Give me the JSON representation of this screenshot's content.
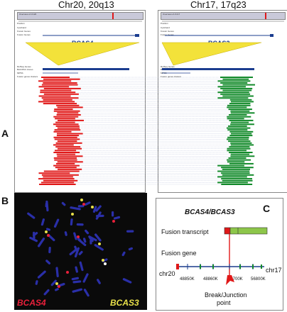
{
  "panel_a": {
    "label": "A",
    "left_title": "Chr20, 20q13",
    "right_title": "Chr17, 17q23",
    "left_gene": "BCAS4",
    "right_gene": "BCAS3",
    "left_ideogram_label": "Overview of chr20",
    "right_ideogram_label": "Overview of chr17",
    "track_titles": [
      "Position",
      "Cytoband",
      "Known Genes",
      "Fusion Genes",
      "RefSeq Genes",
      "BAC/PAC clones",
      "MPSS",
      "Fusion genes clusters"
    ],
    "colors": {
      "left_reads": "#e01818",
      "right_reads": "#128a2a",
      "zoom": "#f3e23a",
      "gene_bar": "#1b3d8f"
    }
  },
  "panel_b": {
    "label": "B",
    "probe_left": "BCAS4",
    "probe_right": "BCAS3",
    "colors": {
      "probe_left": "#e8203a",
      "probe_right": "#e8e04a",
      "background": "#0a0a0a",
      "chromosome": "#2a2fa8"
    }
  },
  "panel_c": {
    "label": "C",
    "title": "BCAS4/BCAS3",
    "fusion_transcript_label": "Fusion transcript",
    "fusion_gene_label": "Fusion gene",
    "chr_left": "chr20",
    "chr_right": "chr17",
    "ticks": [
      "48850K",
      "48860K",
      "56700K",
      "56800K"
    ],
    "break_label_1": "Break/Junction",
    "break_label_2": "point",
    "colors": {
      "transcript_left": "#e01818",
      "transcript_right": "#8dc64a",
      "axis": "#1a3c8c",
      "exon": "#128a2a"
    }
  }
}
